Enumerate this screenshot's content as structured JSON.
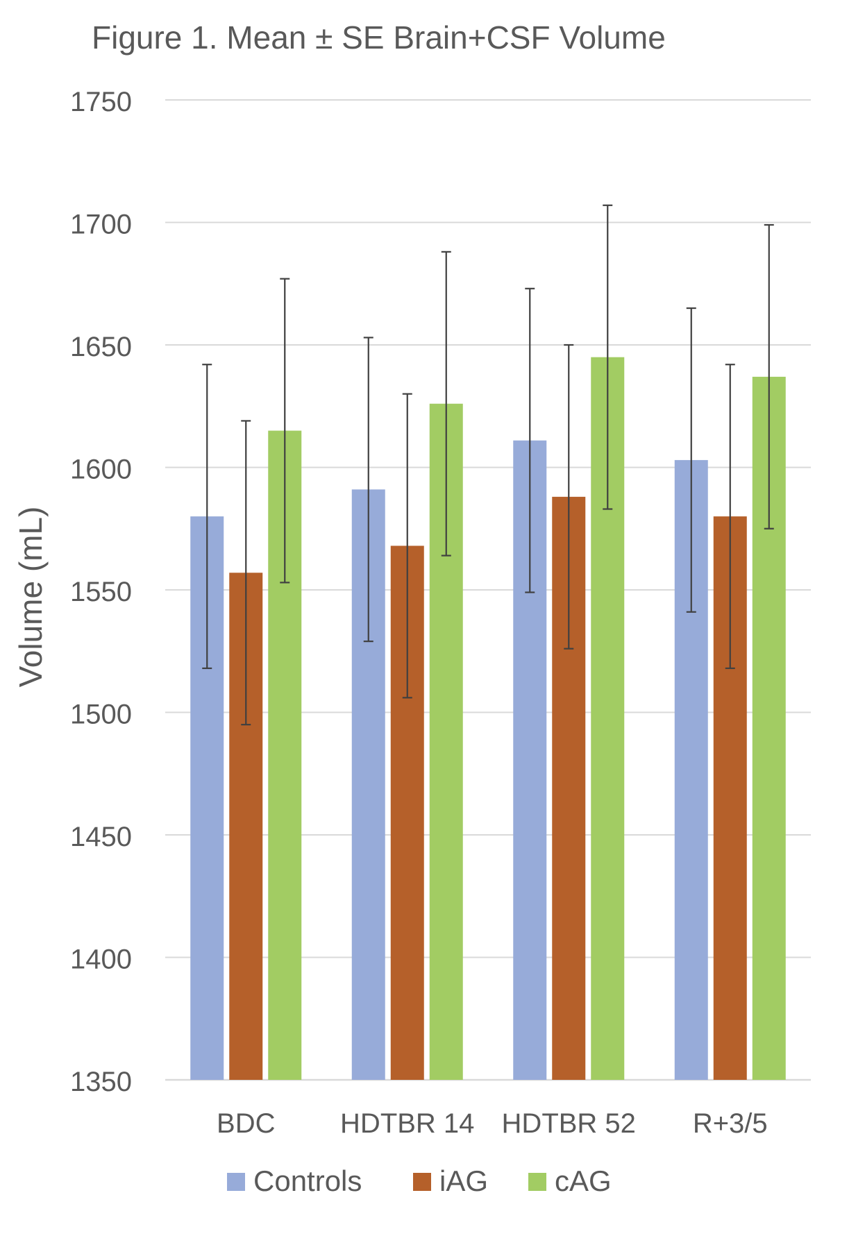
{
  "chart_data": {
    "type": "bar",
    "title": "Figure 1. Mean ± SE Brain+CSF Volume",
    "xlabel": "",
    "ylabel": "Volume (mL)",
    "ylim": [
      1350,
      1750
    ],
    "yticks": [
      1350,
      1400,
      1450,
      1500,
      1550,
      1600,
      1650,
      1700,
      1750
    ],
    "grid": true,
    "legend_position": "bottom",
    "categories": [
      "BDC",
      "HDTBR 14",
      "HDTBR 52",
      "R+3/5"
    ],
    "series": [
      {
        "name": "Controls",
        "color": "#97abd9",
        "values": [
          1580,
          1591,
          1611,
          1603
        ],
        "error": [
          62,
          62,
          62,
          62
        ]
      },
      {
        "name": "iAG",
        "color": "#b5602a",
        "values": [
          1557,
          1568,
          1588,
          1580
        ],
        "error": [
          62,
          62,
          62,
          62
        ]
      },
      {
        "name": "cAG",
        "color": "#a2cc63",
        "values": [
          1615,
          1626,
          1645,
          1637
        ],
        "error": [
          62,
          62,
          62,
          62
        ]
      }
    ],
    "error_bar_color": "#404040",
    "grid_color": "#d9d9d9"
  }
}
